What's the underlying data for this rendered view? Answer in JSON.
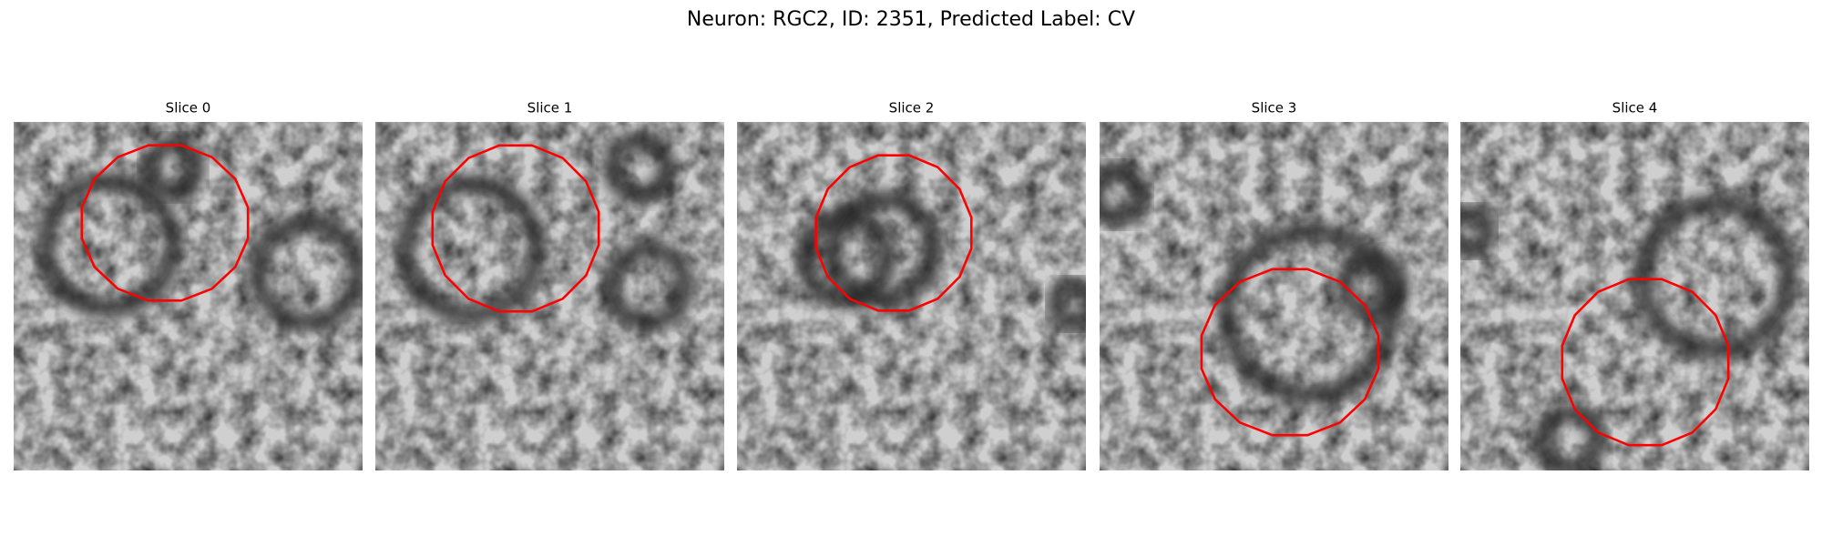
{
  "title": "Neuron: RGC2, ID: 2351, Predicted Label: CV",
  "panels": [
    {
      "title": "Slice 0"
    },
    {
      "title": "Slice 1"
    },
    {
      "title": "Slice 2"
    },
    {
      "title": "Slice 3"
    },
    {
      "title": "Slice 4"
    }
  ]
}
